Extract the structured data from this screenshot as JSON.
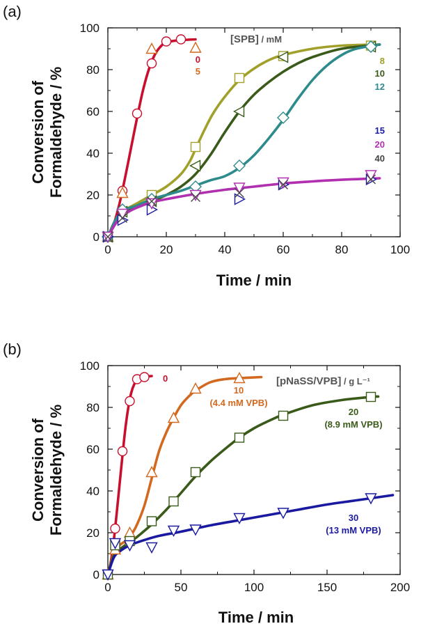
{
  "chart_data": [
    {
      "panel": "(a)",
      "type": "line",
      "xlabel": "Time / min",
      "ylabel_line1": "Conversion of",
      "ylabel_line2": "Formaldehyde / %",
      "xlim": [
        0,
        100
      ],
      "ylim": [
        0,
        100
      ],
      "xticks": [
        0,
        20,
        40,
        60,
        80,
        100
      ],
      "yticks": [
        0,
        20,
        40,
        60,
        80,
        100
      ],
      "legend_title": "[SPB]",
      "legend_unit": " / mM",
      "series": [
        {
          "name": "0",
          "color": "#c8102e",
          "marker": "circle",
          "points": [
            [
              0,
              0
            ],
            [
              5,
              22
            ],
            [
              10,
              59
            ],
            [
              15,
              83
            ],
            [
              20,
              93.5
            ],
            [
              25,
              94.5
            ]
          ],
          "curve": [
            [
              0,
              0
            ],
            [
              2,
              6
            ],
            [
              4,
              16
            ],
            [
              6,
              29
            ],
            [
              8,
              43
            ],
            [
              10,
              57
            ],
            [
              12,
              70
            ],
            [
              14,
              80
            ],
            [
              16,
              87
            ],
            [
              18,
              91
            ],
            [
              20,
              93
            ],
            [
              24,
              94
            ],
            [
              30,
              94.5
            ]
          ]
        },
        {
          "name": "5",
          "color": "#d2691e",
          "marker": "triangle-up",
          "points": [
            [
              0,
              0
            ],
            [
              5,
              21
            ],
            [
              15,
              90
            ],
            [
              30,
              90.5
            ]
          ],
          "curve": []
        },
        {
          "name": "8",
          "color": "#a0a02a",
          "marker": "square",
          "points": [
            [
              0,
              0
            ],
            [
              15,
              20
            ],
            [
              30,
              43
            ],
            [
              45,
              76
            ],
            [
              60,
              86.5
            ],
            [
              90,
              91.5
            ]
          ],
          "curve": [
            [
              0,
              0
            ],
            [
              3,
              9
            ],
            [
              6,
              13
            ],
            [
              10,
              16
            ],
            [
              15,
              20
            ],
            [
              20,
              24
            ],
            [
              25,
              30
            ],
            [
              28,
              36
            ],
            [
              30,
              42
            ],
            [
              33,
              51
            ],
            [
              36,
              59
            ],
            [
              40,
              67
            ],
            [
              45,
              75
            ],
            [
              50,
              80.5
            ],
            [
              55,
              84.5
            ],
            [
              60,
              87
            ],
            [
              70,
              90
            ],
            [
              80,
              91.5
            ],
            [
              93,
              92
            ]
          ]
        },
        {
          "name": "10",
          "color": "#3a5a1a",
          "marker": "triangle-left",
          "points": [
            [
              0,
              0
            ],
            [
              5,
              12
            ],
            [
              15,
              17
            ],
            [
              30,
              34
            ],
            [
              45,
              60
            ],
            [
              60,
              86
            ],
            [
              90,
              91
            ]
          ],
          "curve": [
            [
              0,
              0
            ],
            [
              3,
              9
            ],
            [
              6,
              12
            ],
            [
              10,
              14
            ],
            [
              15,
              17
            ],
            [
              20,
              20
            ],
            [
              25,
              24
            ],
            [
              30,
              30
            ],
            [
              35,
              39
            ],
            [
              40,
              50
            ],
            [
              45,
              60
            ],
            [
              50,
              68
            ],
            [
              55,
              74
            ],
            [
              60,
              79
            ],
            [
              65,
              83
            ],
            [
              70,
              86
            ],
            [
              80,
              90
            ],
            [
              93,
              92
            ]
          ]
        },
        {
          "name": "12",
          "color": "#2e8b8b",
          "marker": "diamond",
          "points": [
            [
              0,
              0
            ],
            [
              5,
              13
            ],
            [
              15,
              18
            ],
            [
              30,
              24
            ],
            [
              45,
              34
            ],
            [
              60,
              57
            ],
            [
              90,
              91
            ]
          ],
          "curve": [
            [
              0,
              0
            ],
            [
              3,
              9
            ],
            [
              6,
              13
            ],
            [
              10,
              15
            ],
            [
              15,
              18
            ],
            [
              20,
              20
            ],
            [
              25,
              22
            ],
            [
              30,
              24.5
            ],
            [
              35,
              27
            ],
            [
              40,
              29
            ],
            [
              45,
              33
            ],
            [
              50,
              39
            ],
            [
              55,
              47
            ],
            [
              60,
              56
            ],
            [
              65,
              66
            ],
            [
              70,
              75
            ],
            [
              75,
              82
            ],
            [
              80,
              87
            ],
            [
              85,
              90
            ],
            [
              93,
              92
            ]
          ]
        },
        {
          "name": "15",
          "color": "#1a1aa0",
          "marker": "triangle-right",
          "points": [
            [
              0,
              0
            ],
            [
              5,
              8
            ],
            [
              15,
              13
            ],
            [
              45,
              18
            ],
            [
              60,
              25
            ],
            [
              90,
              27.5
            ]
          ],
          "curve": []
        },
        {
          "name": "20",
          "color": "#b030b0",
          "marker": "triangle-down",
          "points": [
            [
              0,
              0
            ],
            [
              5,
              11
            ],
            [
              15,
              16
            ],
            [
              30,
              20
            ],
            [
              45,
              23.5
            ],
            [
              60,
              26
            ],
            [
              90,
              29.5
            ]
          ],
          "curve": [
            [
              0,
              0
            ],
            [
              3,
              7
            ],
            [
              6,
              11
            ],
            [
              10,
              14
            ],
            [
              15,
              16.5
            ],
            [
              20,
              18
            ],
            [
              30,
              20.5
            ],
            [
              40,
              22.5
            ],
            [
              50,
              24
            ],
            [
              60,
              25.5
            ],
            [
              70,
              26.5
            ],
            [
              80,
              27.3
            ],
            [
              93,
              28
            ]
          ]
        },
        {
          "name": "40",
          "color": "#444444",
          "marker": "x",
          "points": [
            [
              0,
              0
            ],
            [
              5,
              9
            ],
            [
              15,
              17
            ],
            [
              30,
              19
            ],
            [
              45,
              21
            ],
            [
              60,
              25
            ],
            [
              90,
              27.5
            ]
          ],
          "curve": []
        }
      ]
    },
    {
      "panel": "(b)",
      "type": "line",
      "xlabel": "Time / min",
      "ylabel_line1": "Conversion of",
      "ylabel_line2": "Formaldehyde / %",
      "xlim": [
        0,
        200
      ],
      "ylim": [
        0,
        100
      ],
      "xticks": [
        0,
        50,
        100,
        150,
        200
      ],
      "yticks": [
        0,
        20,
        40,
        60,
        80,
        100
      ],
      "legend_title": "[pNaSS/VPB]",
      "legend_unit": " / g L⁻¹",
      "series": [
        {
          "name": "0",
          "sublabel": "",
          "color": "#c8102e",
          "marker": "circle",
          "points": [
            [
              0,
              0
            ],
            [
              5,
              22
            ],
            [
              10,
              59
            ],
            [
              15,
              83
            ],
            [
              20,
              93.5
            ],
            [
              25,
              94.5
            ]
          ],
          "curve": [
            [
              0,
              0
            ],
            [
              2,
              6
            ],
            [
              4,
              16
            ],
            [
              6,
              29
            ],
            [
              8,
              43
            ],
            [
              10,
              57
            ],
            [
              12,
              70
            ],
            [
              14,
              80
            ],
            [
              16,
              87
            ],
            [
              18,
              91
            ],
            [
              20,
              93
            ],
            [
              24,
              94.5
            ],
            [
              30,
              95
            ]
          ]
        },
        {
          "name": "10",
          "sublabel": "(4.4 mM VPB)",
          "color": "#d2691e",
          "marker": "triangle-up",
          "points": [
            [
              0,
              0
            ],
            [
              5,
              12
            ],
            [
              15,
              20
            ],
            [
              30,
              49
            ],
            [
              45,
              75
            ],
            [
              60,
              89
            ],
            [
              90,
              94
            ]
          ],
          "curve": [
            [
              0,
              0
            ],
            [
              4,
              10
            ],
            [
              8,
              14
            ],
            [
              12,
              16
            ],
            [
              16,
              19
            ],
            [
              20,
              24
            ],
            [
              25,
              33
            ],
            [
              30,
              46
            ],
            [
              35,
              59
            ],
            [
              40,
              68
            ],
            [
              45,
              75
            ],
            [
              50,
              81
            ],
            [
              55,
              85
            ],
            [
              60,
              88
            ],
            [
              70,
              92
            ],
            [
              80,
              93.5
            ],
            [
              90,
              94
            ],
            [
              105,
              94.5
            ]
          ]
        },
        {
          "name": "20",
          "sublabel": "(8.9 mM VPB)",
          "color": "#3a5a1a",
          "marker": "square",
          "points": [
            [
              0,
              0
            ],
            [
              5,
              14
            ],
            [
              15,
              16
            ],
            [
              30,
              25.5
            ],
            [
              45,
              35
            ],
            [
              60,
              49
            ],
            [
              90,
              65.5
            ],
            [
              120,
              76
            ],
            [
              180,
              85
            ]
          ],
          "curve": [
            [
              0,
              0
            ],
            [
              4,
              9
            ],
            [
              8,
              12
            ],
            [
              15,
              15.5
            ],
            [
              20,
              18
            ],
            [
              30,
              24
            ],
            [
              40,
              31
            ],
            [
              50,
              39
            ],
            [
              60,
              47
            ],
            [
              70,
              54
            ],
            [
              80,
              60
            ],
            [
              90,
              65.5
            ],
            [
              100,
              70
            ],
            [
              110,
              73.5
            ],
            [
              120,
              76.5
            ],
            [
              140,
              81
            ],
            [
              160,
              83.5
            ],
            [
              180,
              85
            ],
            [
              185,
              85.2
            ]
          ]
        },
        {
          "name": "30",
          "sublabel": "(13 mM VPB)",
          "color": "#1a1aa0",
          "marker": "triangle-down",
          "points": [
            [
              0,
              0
            ],
            [
              5,
              15
            ],
            [
              15,
              14
            ],
            [
              30,
              13
            ],
            [
              45,
              21
            ],
            [
              60,
              21.5
            ],
            [
              90,
              27
            ],
            [
              120,
              29.5
            ],
            [
              180,
              36.5
            ]
          ],
          "curve": [
            [
              0,
              0
            ],
            [
              4,
              8
            ],
            [
              8,
              11
            ],
            [
              15,
              14
            ],
            [
              25,
              16.5
            ],
            [
              35,
              18.5
            ],
            [
              50,
              20.5
            ],
            [
              70,
              23.5
            ],
            [
              90,
              26
            ],
            [
              110,
              28.5
            ],
            [
              130,
              31
            ],
            [
              150,
              33.5
            ],
            [
              170,
              35.5
            ],
            [
              195,
              38
            ]
          ]
        }
      ]
    }
  ]
}
